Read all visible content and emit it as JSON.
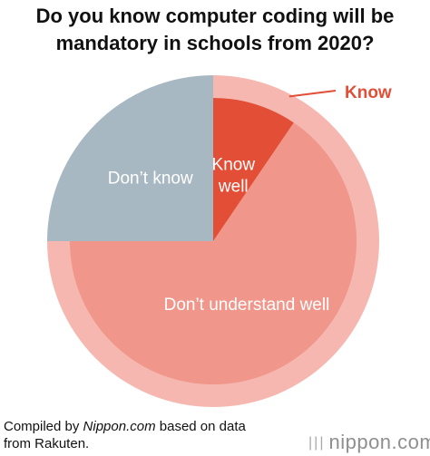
{
  "title": {
    "line1": "Do you know computer coding will be",
    "line2": "mandatory in schools from 2020?"
  },
  "chart_data": {
    "type": "pie",
    "title": "Do you know computer coding will be mandatory in schools from 2020?",
    "slices": [
      {
        "label": "Know well",
        "value": 9.5,
        "color": "#e24e36"
      },
      {
        "label": "Don’t understand well",
        "value": 65.5,
        "color": "#f0968a"
      },
      {
        "label": "Don’t know",
        "value": 25,
        "color": "#a8b8c2"
      }
    ],
    "outer_ring": {
      "label": "Know",
      "value": 75,
      "color": "#f5b7af",
      "label_color": "#e24e36"
    }
  },
  "source": {
    "prefix": "Compiled by ",
    "site": "Nippon.com",
    "suffix": " based on data",
    "line2": "from Rakuten."
  },
  "logo": {
    "dots": "|||",
    "text": "nippon.com"
  }
}
